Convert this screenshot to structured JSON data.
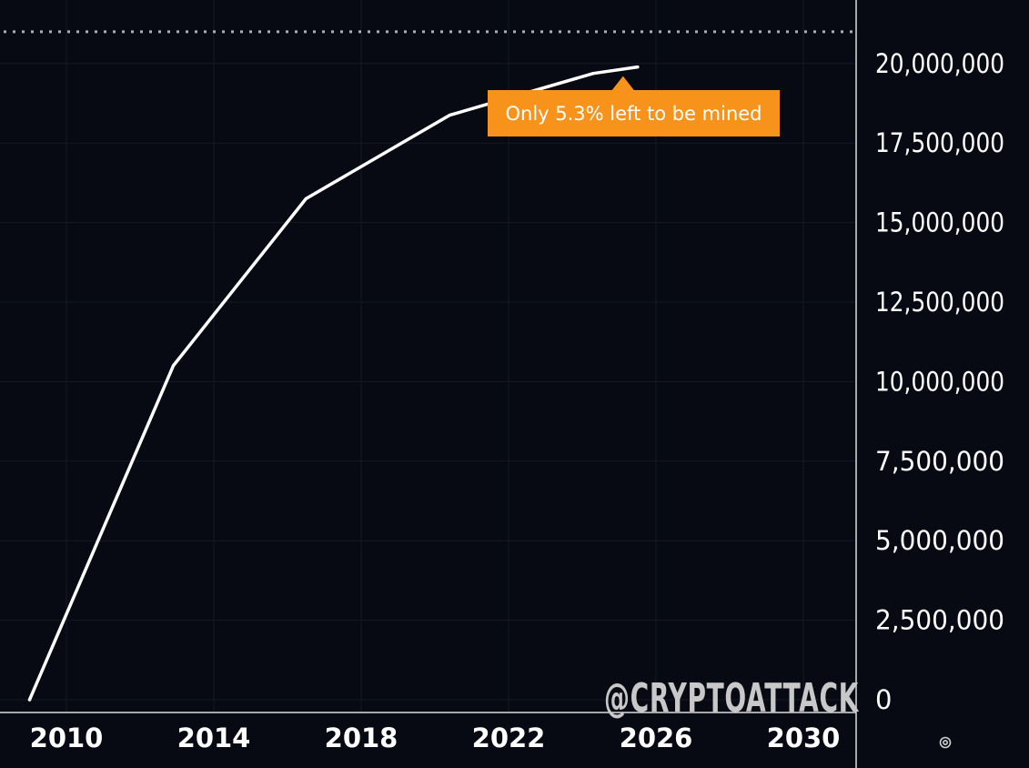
{
  "chart_data": {
    "type": "line",
    "title": "",
    "xlabel": "",
    "ylabel": "",
    "x_ticks": [
      "2010",
      "2014",
      "2018",
      "2022",
      "2026",
      "2030"
    ],
    "y_ticks": [
      "0",
      "2,500,000",
      "5,000,000",
      "7,500,000",
      "10,000,000",
      "12,500,000",
      "15,000,000",
      "17,500,000",
      "20,000,000"
    ],
    "xlim": [
      2009,
      2032
    ],
    "ylim": [
      0,
      21000000
    ],
    "max_supply_line": 21000000,
    "grid": true,
    "series": [
      {
        "x": [
          2009.0,
          2012.9,
          2016.5,
          2020.4,
          2024.3,
          2025.5
        ],
        "y": [
          0,
          10500000,
          15750000,
          18375000,
          19687500,
          19890000
        ]
      }
    ],
    "annotation": {
      "text": "Only 5.3% left to be mined",
      "x": 2025.5,
      "y": 19890000
    },
    "colors": {
      "background": "#070913",
      "line": "#ffffff",
      "callout": "#f7931a",
      "grid": "#161a26",
      "max_line": "#a9adb8"
    }
  },
  "watermark": "@CRYPTOATTACK",
  "settings_icon": "gear-icon"
}
